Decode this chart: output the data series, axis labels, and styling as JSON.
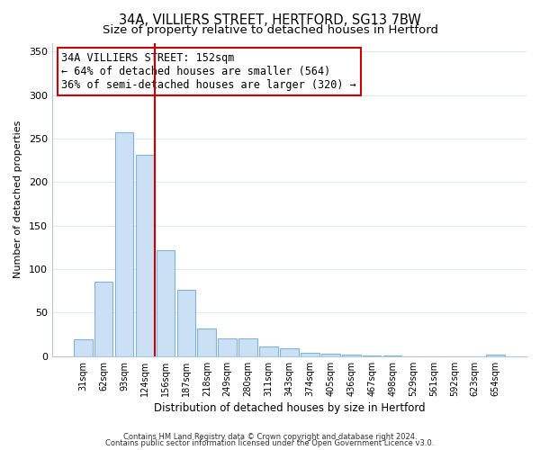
{
  "title1": "34A, VILLIERS STREET, HERTFORD, SG13 7BW",
  "title2": "Size of property relative to detached houses in Hertford",
  "xlabel": "Distribution of detached houses by size in Hertford",
  "ylabel": "Number of detached properties",
  "bar_labels": [
    "31sqm",
    "62sqm",
    "93sqm",
    "124sqm",
    "156sqm",
    "187sqm",
    "218sqm",
    "249sqm",
    "280sqm",
    "311sqm",
    "343sqm",
    "374sqm",
    "405sqm",
    "436sqm",
    "467sqm",
    "498sqm",
    "529sqm",
    "561sqm",
    "592sqm",
    "623sqm",
    "654sqm"
  ],
  "bar_values": [
    19,
    86,
    257,
    231,
    122,
    76,
    32,
    20,
    21,
    11,
    9,
    4,
    3,
    2,
    1,
    1,
    0,
    0,
    0,
    0,
    2
  ],
  "bar_color": "#cce0f5",
  "bar_edge_color": "#7fb3d9",
  "vline_color": "#cc0000",
  "annotation_title": "34A VILLIERS STREET: 152sqm",
  "annotation_line1": "← 64% of detached houses are smaller (564)",
  "annotation_line2": "36% of semi-detached houses are larger (320) →",
  "annotation_box_color": "#ffffff",
  "annotation_box_edge": "#cc0000",
  "ylim": [
    0,
    360
  ],
  "yticks": [
    0,
    50,
    100,
    150,
    200,
    250,
    300,
    350
  ],
  "footer1": "Contains HM Land Registry data © Crown copyright and database right 2024.",
  "footer2": "Contains public sector information licensed under the Open Government Licence v3.0.",
  "bg_color": "#ffffff",
  "grid_color": "#dce8f5",
  "title1_fontsize": 10.5,
  "title2_fontsize": 9.5,
  "annotation_fontsize": 8.5
}
